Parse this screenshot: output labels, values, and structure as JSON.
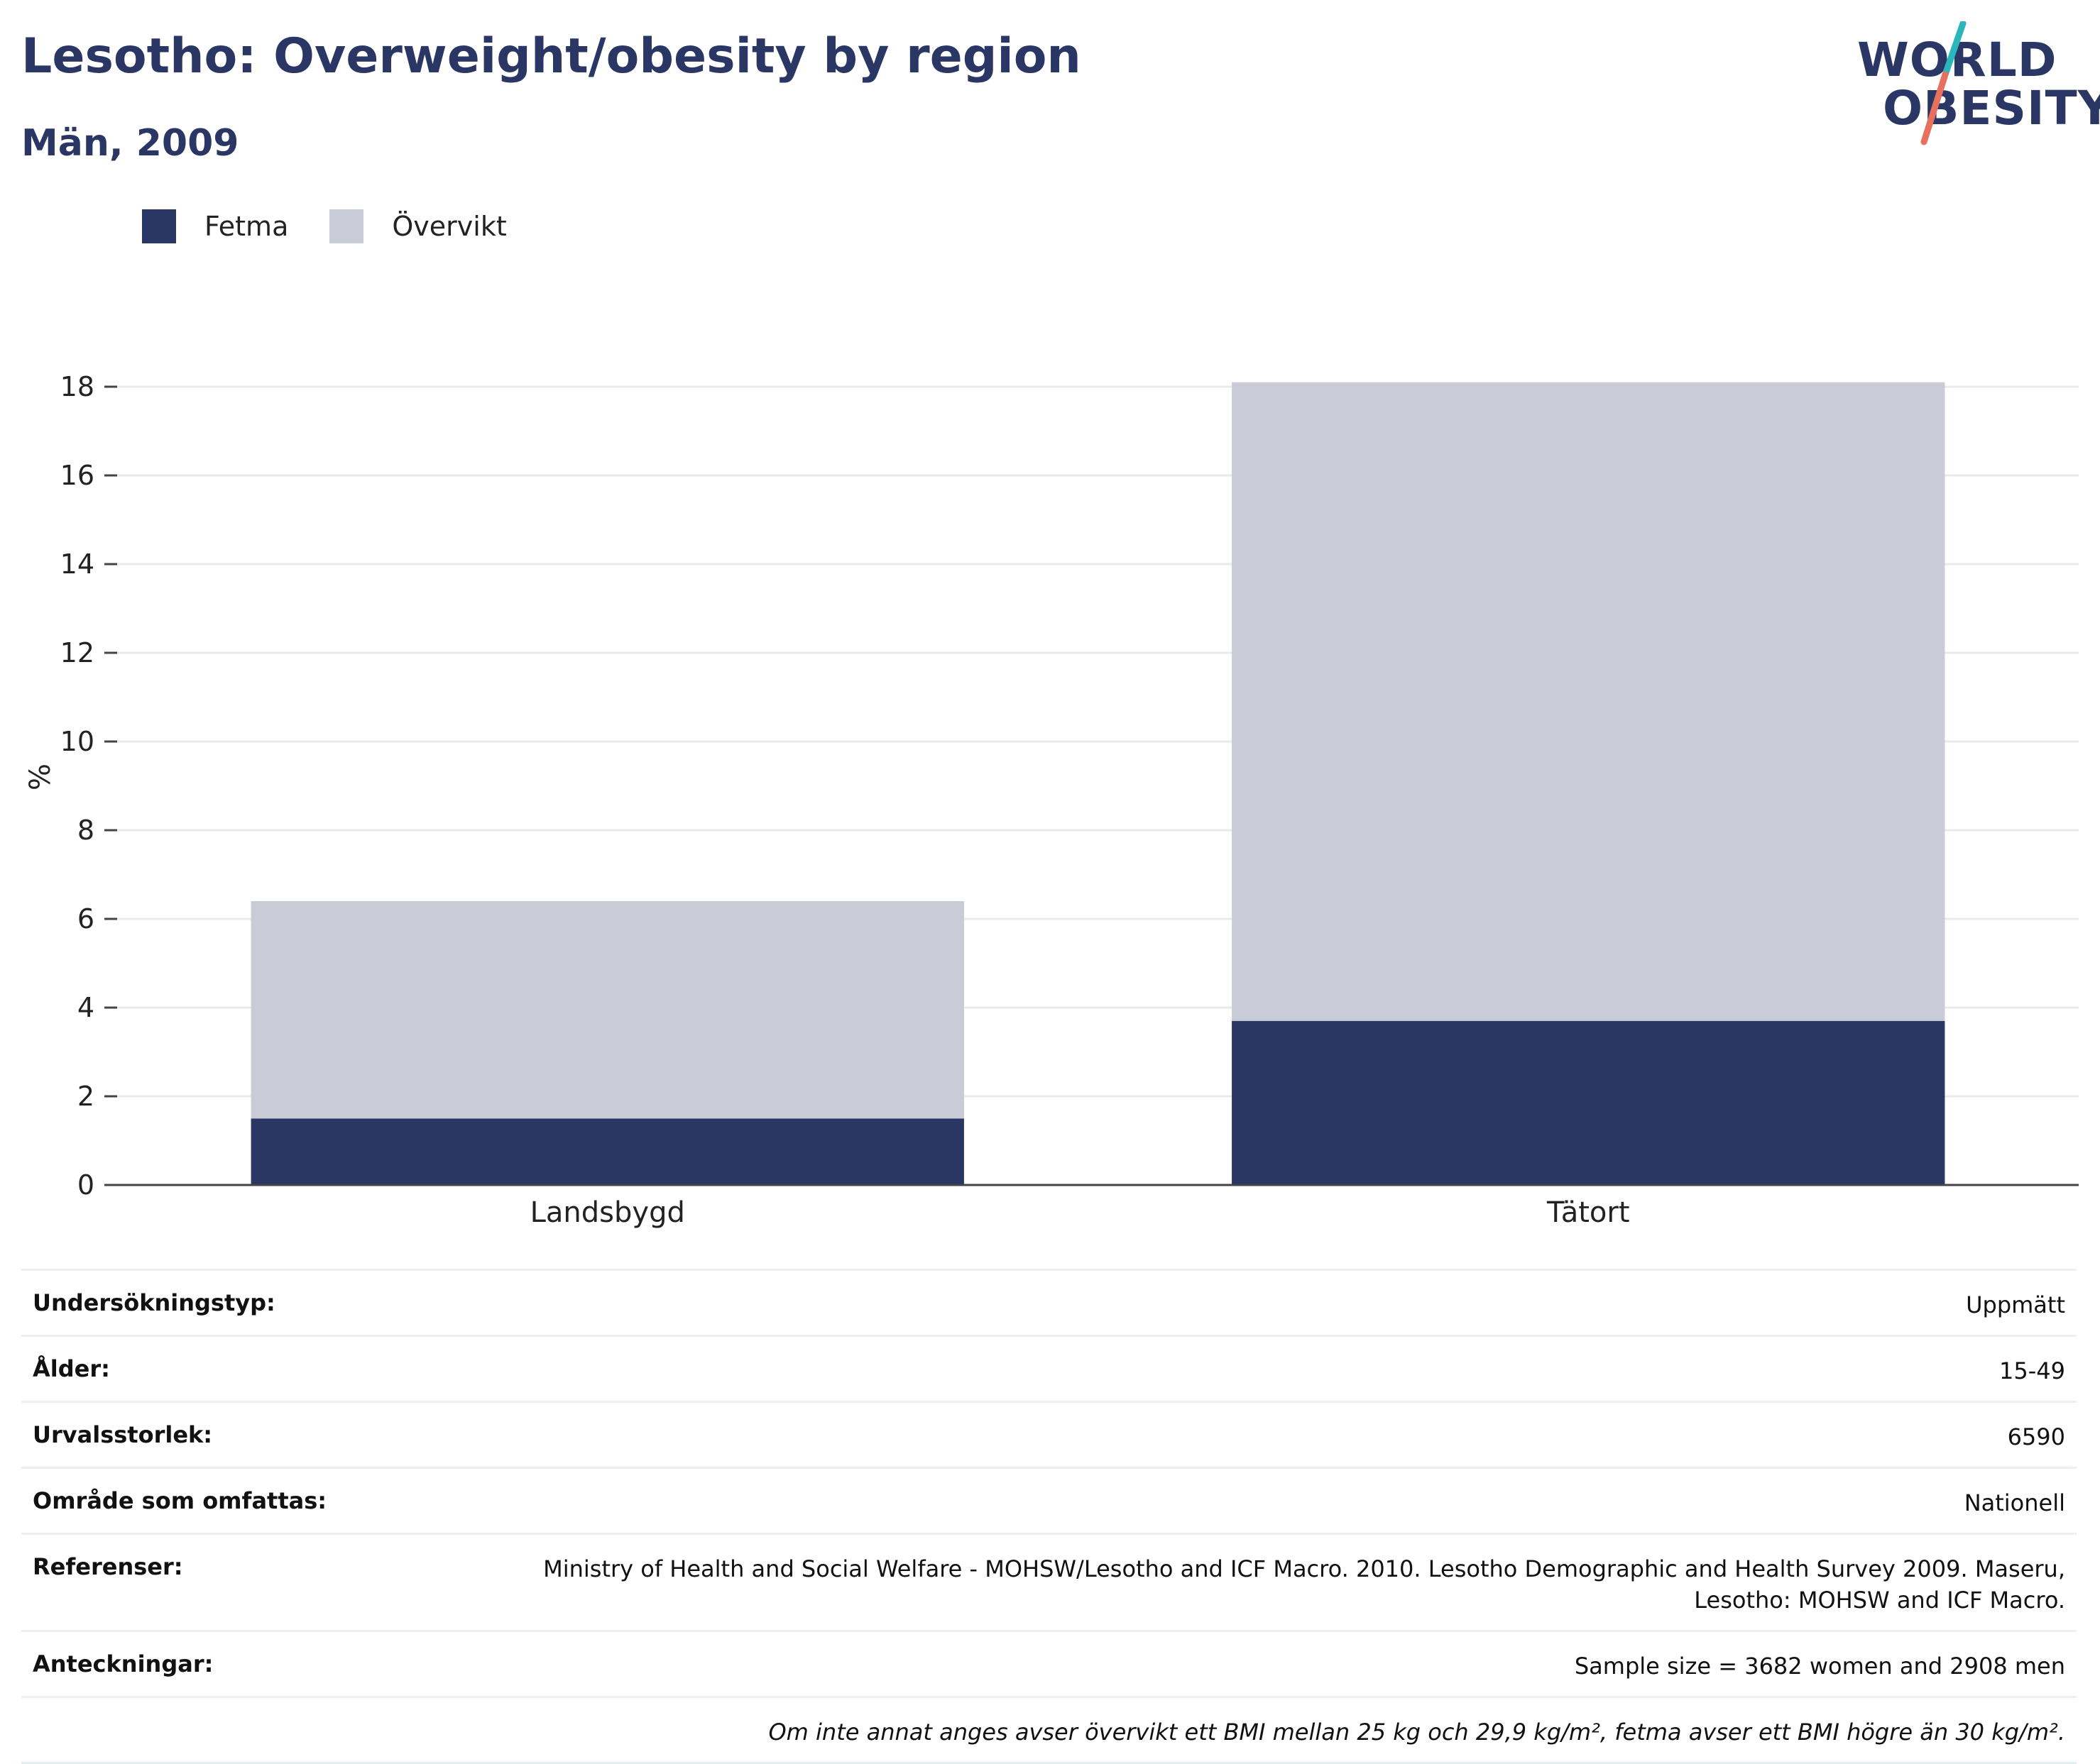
{
  "header": {
    "title": "Lesotho: Overweight/obesity by region",
    "subtitle": "Män, 2009"
  },
  "logo": {
    "line1": "WORLD",
    "line2": "OBESITY",
    "colors": {
      "text": "#2a3663",
      "slash_top": "#2bb5bd",
      "slash_bottom": "#e8705f"
    }
  },
  "legend": {
    "items": [
      {
        "label": "Fetma",
        "color": "#2a3663"
      },
      {
        "label": "Övervikt",
        "color": "#c9cbd6"
      }
    ]
  },
  "chart_data": {
    "type": "bar",
    "stacked": true,
    "categories": [
      "Landsbygd",
      "Tätort"
    ],
    "series": [
      {
        "name": "Fetma",
        "color": "#2a3663",
        "values": [
          1.5,
          3.7
        ]
      },
      {
        "name": "Övervikt",
        "color": "#c9cbd6",
        "values": [
          4.9,
          14.4
        ]
      }
    ],
    "title": "Lesotho: Overweight/obesity by region",
    "subtitle": "Män, 2009",
    "xlabel": "",
    "ylabel": "%",
    "ylim": [
      0,
      18.4
    ],
    "yticks": [
      0,
      2,
      4,
      6,
      8,
      10,
      12,
      14,
      16,
      18
    ],
    "grid": true,
    "legend_position": "top-left"
  },
  "metadata": {
    "rows": [
      {
        "key": "Undersökningstyp:",
        "value": "Uppmätt"
      },
      {
        "key": "Ålder:",
        "value": "15-49"
      },
      {
        "key": "Urvalsstorlek:",
        "value": "6590"
      },
      {
        "key": "Område som omfattas:",
        "value": "Nationell"
      },
      {
        "key": "Referenser:",
        "value": "Ministry of Health and Social Welfare - MOHSW/Lesotho and ICF Macro. 2010. Lesotho Demographic and Health Survey 2009. Maseru, Lesotho: MOHSW and ICF Macro."
      },
      {
        "key": "Anteckningar:",
        "value": "Sample size = 3682 women and 2908 men"
      }
    ],
    "note": "Om inte annat anges avser övervikt ett BMI mellan 25 kg och 29,9 kg/m², fetma avser ett BMI högre än 30 kg/m²."
  }
}
